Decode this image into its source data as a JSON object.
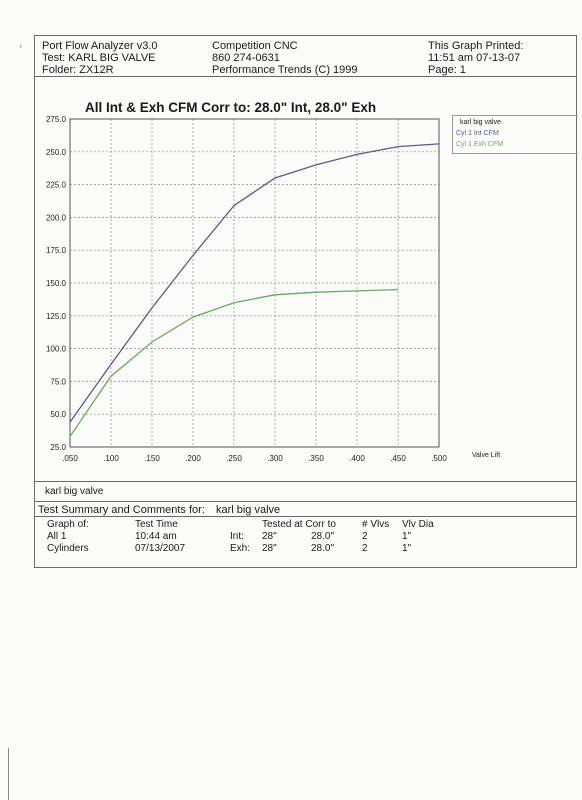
{
  "header": {
    "app_title": "Port Flow Analyzer v3.0",
    "test": "Test: KARL BIG VALVE",
    "folder": "Folder: ZX12R",
    "company": "Competition CNC",
    "phone": "860 274-0631",
    "copyright": "Performance Trends (C) 1999",
    "printed_label": "This Graph Printed:",
    "printed_time": "11:51 am 07-13-07",
    "page": "Page: 1"
  },
  "sheet_mark": "'",
  "chart_data": {
    "type": "line",
    "title": "All Int & Exh CFM   Corr to: 28.0\" Int, 28.0\" Exh",
    "xlabel": "Valve Lift",
    "ylabel": "",
    "x_ticks": [
      ".050",
      ".100",
      ".150",
      ".200",
      ".250",
      ".300",
      ".350",
      ".400",
      ".450",
      ".500"
    ],
    "y_ticks": [
      "25.0",
      "50.0",
      "75.0",
      "100.0",
      "125.0",
      "150.0",
      "175.0",
      "200.0",
      "225.0",
      "250.0",
      "275.0"
    ],
    "xlim": [
      0.05,
      0.5
    ],
    "ylim": [
      25,
      275
    ],
    "grid": true,
    "legend_title": "karl big valve",
    "series": [
      {
        "name": "Cyl 1 Int CFM",
        "color": "#5a5a8c",
        "x": [
          0.05,
          0.1,
          0.15,
          0.2,
          0.25,
          0.3,
          0.35,
          0.4,
          0.45,
          0.5
        ],
        "values": [
          44,
          88,
          131,
          171,
          209,
          230,
          240,
          248,
          254,
          256
        ]
      },
      {
        "name": "Cyl 1 Exh CFM",
        "color": "#6aaa62",
        "x": [
          0.05,
          0.1,
          0.15,
          0.2,
          0.25,
          0.3,
          0.35,
          0.4,
          0.45
        ],
        "values": [
          33,
          79,
          105,
          124,
          135,
          141,
          143,
          144,
          145
        ]
      }
    ]
  },
  "valve_label": "karl big valve",
  "summary": {
    "heading": "Test Summary and Comments for:",
    "heading_name": "karl big valve",
    "col_graph_of": "Graph of:",
    "col_test_time": "Test Time",
    "col_tested_at": "Tested at Corr to",
    "col_vlvs": "# Vlvs",
    "col_vlv_dia": "Vlv Dia",
    "row1": {
      "graph": "All 1",
      "time": "10:44 am",
      "port": "Int:",
      "tested": "28\"",
      "corr": "28.0\"",
      "vlvs": "2",
      "dia": "1\""
    },
    "row2": {
      "graph": "Cylinders",
      "time": "07/13/2007",
      "port": "Exh:",
      "tested": "28\"",
      "corr": "28.0\"",
      "vlvs": "2",
      "dia": "1\""
    }
  }
}
